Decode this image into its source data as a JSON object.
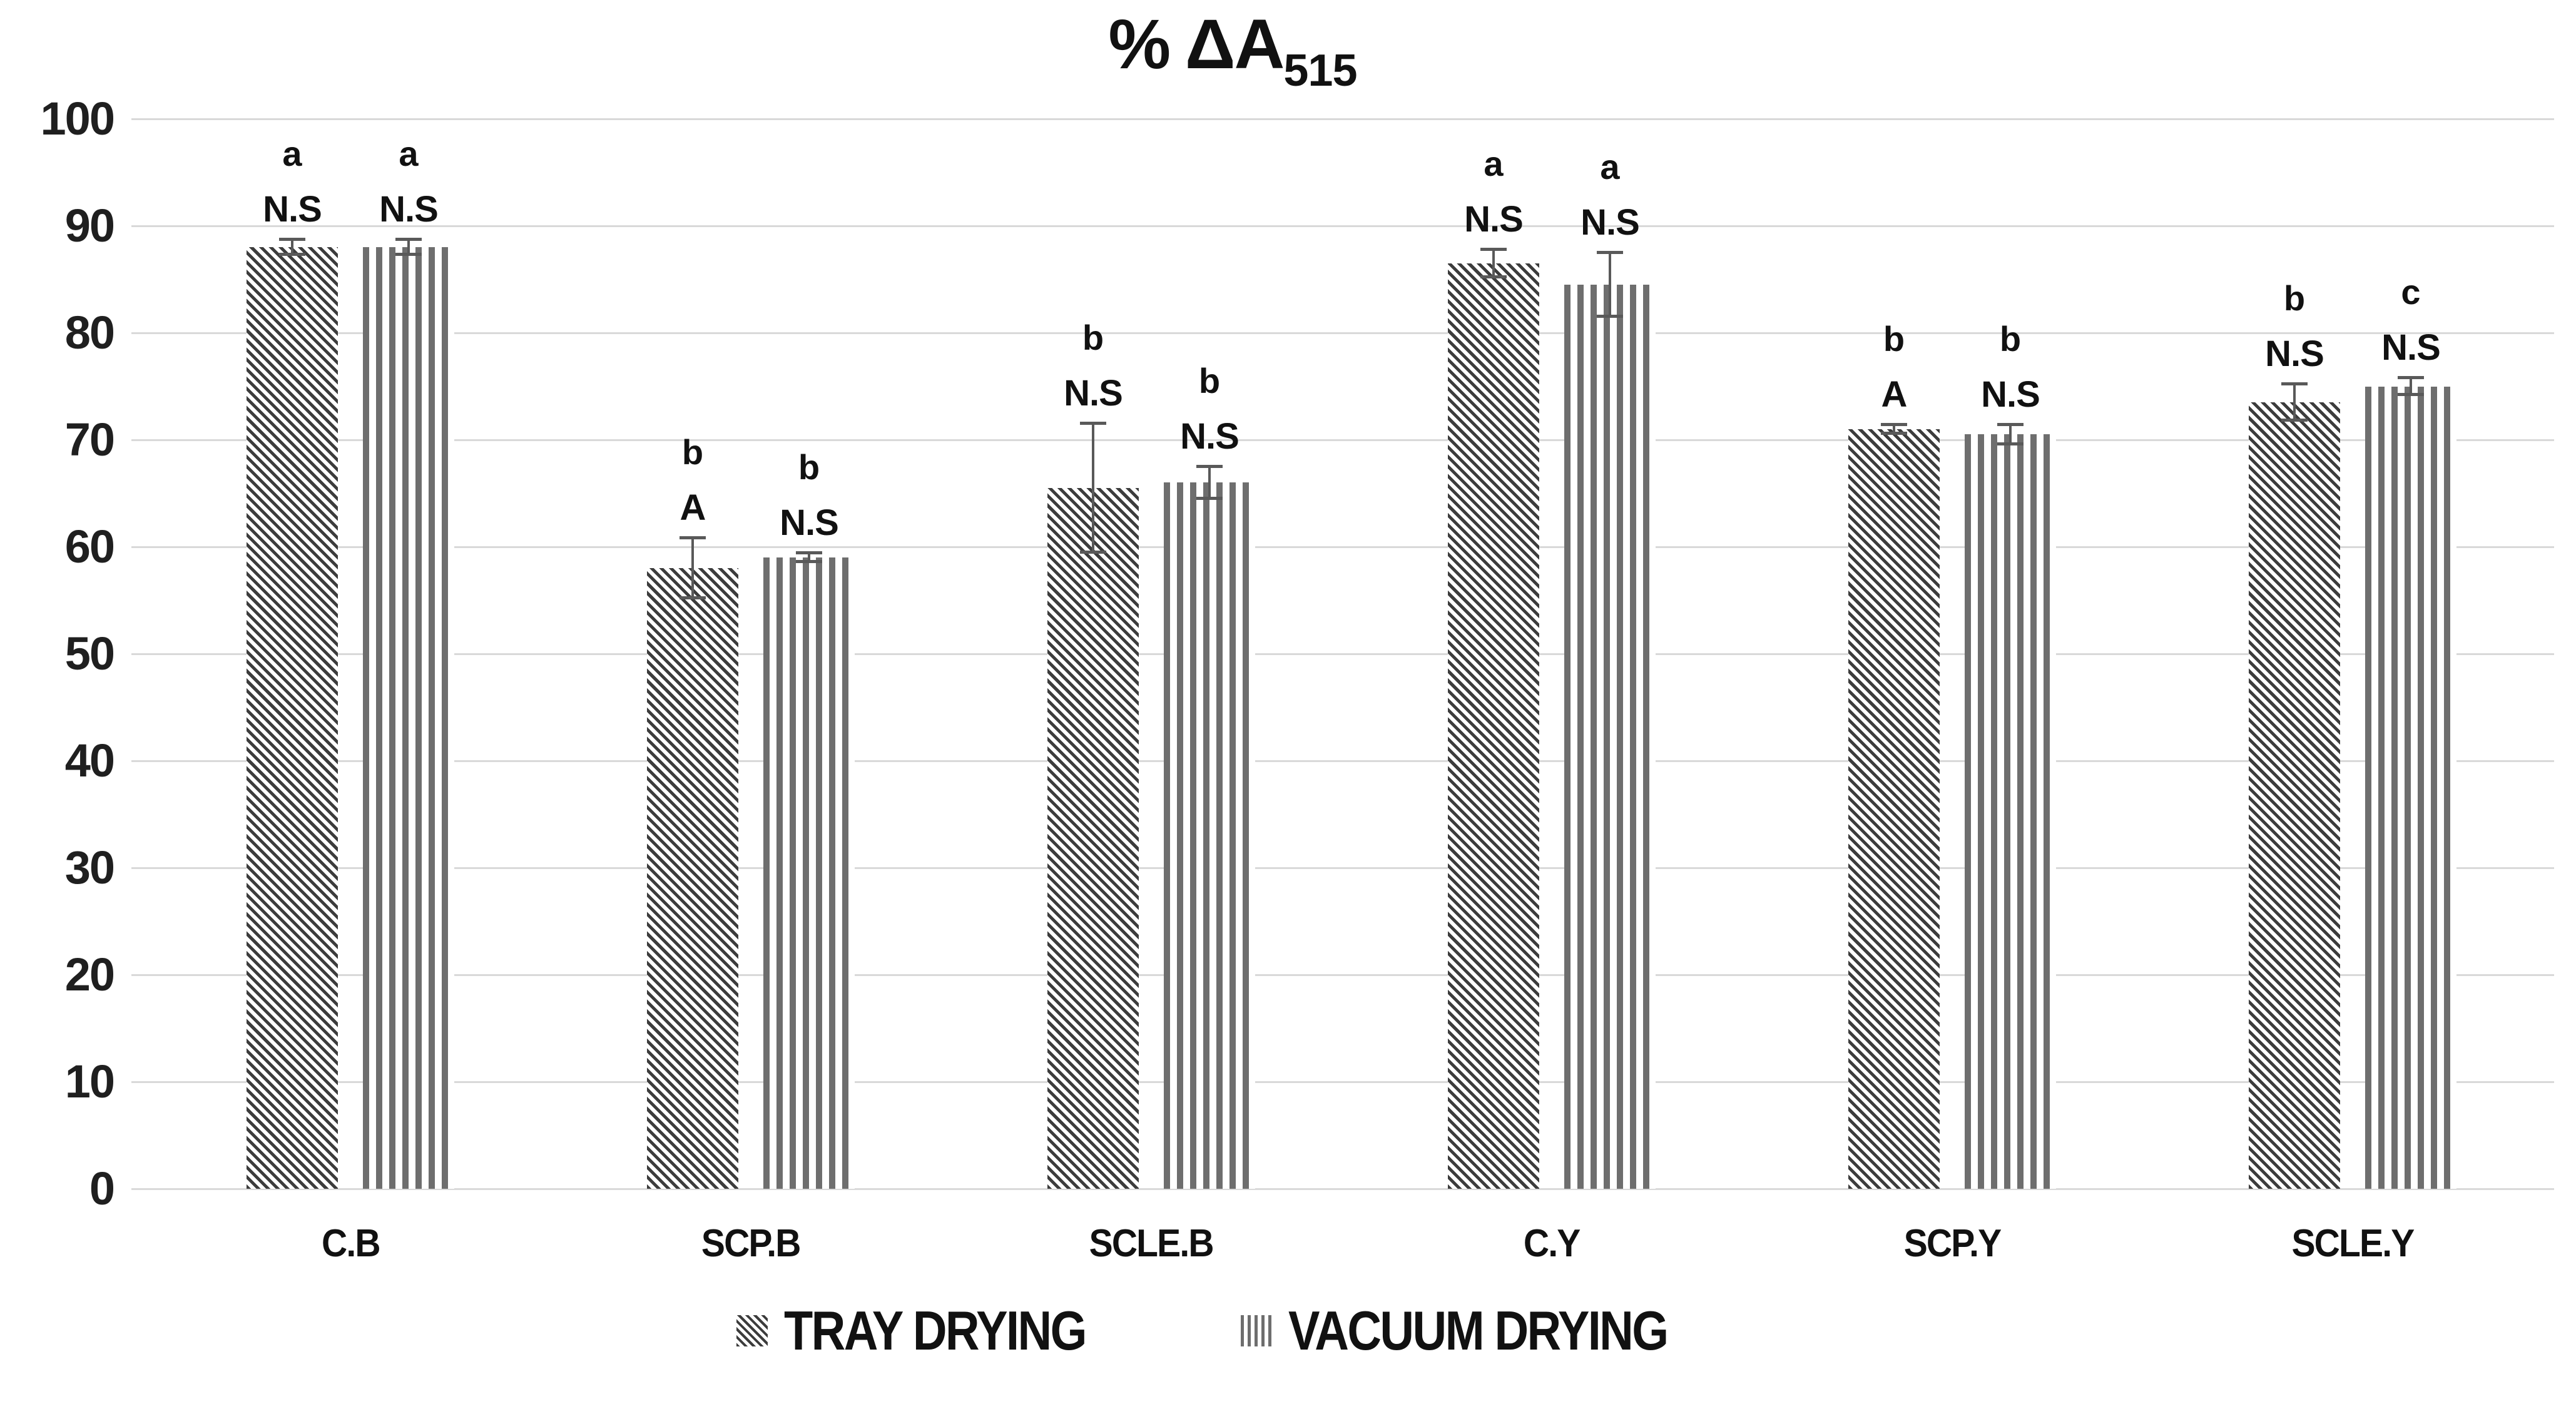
{
  "title": {
    "prefix": "% ΔA",
    "subscript": "515"
  },
  "colors": {
    "tray_stripe": "#3c3c3c",
    "vacuum_stripe": "#6e6e6e",
    "gridline": "#d9d9d9",
    "error_bar": "#595959",
    "text": "#111111",
    "background": "#ffffff"
  },
  "chart_data": {
    "type": "bar",
    "title": "% ΔA515",
    "xlabel": "",
    "ylabel": "",
    "ylim": [
      0,
      100
    ],
    "ytick_step": 10,
    "grid": true,
    "legend_position": "bottom",
    "categories": [
      "C.B",
      "SCP.B",
      "SCLE.B",
      "C.Y",
      "SCP.Y",
      "SCLE.Y"
    ],
    "series": [
      {
        "name": "TRAY DRYING",
        "pattern_icon": "diagonal-hatch-icon",
        "values": [
          88,
          58,
          65.5,
          86.5,
          71,
          73.5
        ],
        "errors": [
          0.7,
          2.8,
          6,
          1.3,
          0.4,
          1.7
        ],
        "letter_labels": [
          "a",
          "b",
          "b",
          "a",
          "b",
          "b"
        ],
        "stat_labels": [
          "N.S",
          "A",
          "N.S",
          "N.S",
          "A",
          "N.S"
        ]
      },
      {
        "name": "VACUUM DRYING",
        "pattern_icon": "vertical-stripes-icon",
        "values": [
          88,
          59,
          66,
          84.5,
          70.5,
          75
        ],
        "errors": [
          0.7,
          0.4,
          1.5,
          3,
          0.9,
          0.8
        ],
        "letter_labels": [
          "a",
          "b",
          "b",
          "a",
          "b",
          "c"
        ],
        "stat_labels": [
          "N.S",
          "N.S",
          "N.S",
          "N.S",
          "N.S",
          "N.S"
        ]
      }
    ]
  }
}
